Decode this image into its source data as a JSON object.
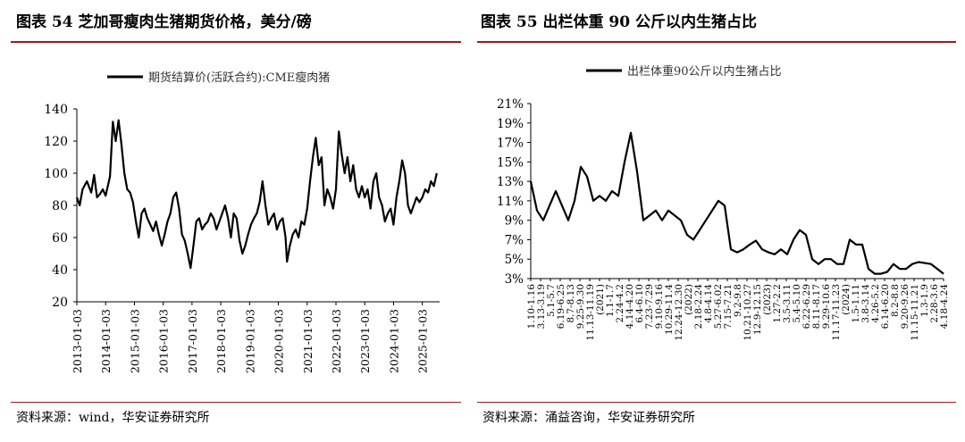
{
  "left": {
    "title": "图表 54 芝加哥瘦肉生猪期货价格，美分/磅",
    "source": "资料来源：wind，华安证券研究所"
  },
  "right": {
    "title": "图表 55 出栏体重 90 公斤以内生猪占比",
    "source": "资料来源：涌益咨询，华安证券研究所"
  },
  "chart_data": [
    {
      "type": "line",
      "legend": "期货结算价(活跃合约):CME瘦肉猪",
      "legend_position": "top",
      "ylim": [
        20,
        140
      ],
      "yticks": [
        20,
        40,
        60,
        80,
        100,
        120,
        140
      ],
      "xlim": [
        2013.0,
        2025.6
      ],
      "xticks": [
        {
          "value": 2013.0,
          "label": "2013-01-03"
        },
        {
          "value": 2014.0,
          "label": "2014-01-03"
        },
        {
          "value": 2015.0,
          "label": "2015-01-03"
        },
        {
          "value": 2016.0,
          "label": "2016-01-03"
        },
        {
          "value": 2017.0,
          "label": "2017-01-03"
        },
        {
          "value": 2018.0,
          "label": "2018-01-03"
        },
        {
          "value": 2019.0,
          "label": "2019-01-03"
        },
        {
          "value": 2020.0,
          "label": "2020-01-03"
        },
        {
          "value": 2021.0,
          "label": "2021-01-03"
        },
        {
          "value": 2022.0,
          "label": "2022-01-03"
        },
        {
          "value": 2023.0,
          "label": "2023-01-03"
        },
        {
          "value": 2024.0,
          "label": "2024-01-03"
        },
        {
          "value": 2025.0,
          "label": "2025-01-03"
        }
      ],
      "series": [
        {
          "name": "期货结算价(活跃合约):CME瘦肉猪",
          "x": [
            2013.0,
            2013.1,
            2013.2,
            2013.35,
            2013.5,
            2013.6,
            2013.7,
            2013.8,
            2013.9,
            2014.0,
            2014.15,
            2014.25,
            2014.35,
            2014.45,
            2014.55,
            2014.65,
            2014.75,
            2014.85,
            2014.95,
            2015.05,
            2015.15,
            2015.25,
            2015.35,
            2015.45,
            2015.55,
            2015.65,
            2015.75,
            2015.85,
            2015.95,
            2016.05,
            2016.15,
            2016.25,
            2016.35,
            2016.45,
            2016.55,
            2016.65,
            2016.75,
            2016.85,
            2016.95,
            2017.05,
            2017.15,
            2017.25,
            2017.35,
            2017.45,
            2017.55,
            2017.65,
            2017.75,
            2017.85,
            2017.95,
            2018.05,
            2018.15,
            2018.25,
            2018.35,
            2018.45,
            2018.55,
            2018.65,
            2018.75,
            2018.85,
            2018.95,
            2019.05,
            2019.15,
            2019.25,
            2019.35,
            2019.45,
            2019.55,
            2019.65,
            2019.75,
            2019.85,
            2019.95,
            2020.05,
            2020.15,
            2020.25,
            2020.3,
            2020.4,
            2020.5,
            2020.6,
            2020.7,
            2020.8,
            2020.9,
            2021.0,
            2021.1,
            2021.2,
            2021.3,
            2021.4,
            2021.5,
            2021.6,
            2021.7,
            2021.8,
            2021.9,
            2022.0,
            2022.1,
            2022.2,
            2022.3,
            2022.4,
            2022.5,
            2022.6,
            2022.7,
            2022.8,
            2022.9,
            2023.0,
            2023.1,
            2023.2,
            2023.3,
            2023.4,
            2023.5,
            2023.6,
            2023.7,
            2023.8,
            2023.9,
            2024.0,
            2024.1,
            2024.2,
            2024.3,
            2024.4,
            2024.5,
            2024.6,
            2024.7,
            2024.8,
            2024.9,
            2025.0,
            2025.1,
            2025.2,
            2025.3,
            2025.4,
            2025.5
          ],
          "values": [
            85,
            80,
            90,
            95,
            88,
            99,
            85,
            87,
            90,
            86,
            98,
            132,
            120,
            133,
            118,
            100,
            90,
            88,
            82,
            70,
            60,
            75,
            78,
            72,
            68,
            64,
            70,
            62,
            55,
            62,
            70,
            75,
            85,
            88,
            78,
            62,
            58,
            50,
            41,
            55,
            70,
            72,
            65,
            68,
            70,
            75,
            72,
            65,
            70,
            75,
            80,
            72,
            60,
            75,
            72,
            58,
            50,
            55,
            62,
            68,
            72,
            75,
            82,
            95,
            80,
            68,
            72,
            75,
            65,
            70,
            72,
            60,
            45,
            55,
            62,
            65,
            60,
            70,
            68,
            78,
            95,
            110,
            122,
            105,
            110,
            80,
            90,
            85,
            78,
            90,
            126,
            112,
            100,
            110,
            95,
            105,
            90,
            85,
            92,
            85,
            90,
            78,
            95,
            100,
            85,
            80,
            70,
            75,
            78,
            68,
            85,
            95,
            108,
            100,
            80,
            75,
            80,
            85,
            82,
            85,
            90,
            88,
            95,
            92,
            100
          ]
        }
      ]
    },
    {
      "type": "line",
      "legend": "出栏体重90公斤以内生猪占比",
      "legend_position": "top",
      "ylim": [
        3,
        21
      ],
      "yticks": [
        "3%",
        "5%",
        "7%",
        "9%",
        "11%",
        "13%",
        "15%",
        "17%",
        "19%",
        "21%"
      ],
      "xticks": [
        "1.10-1.16",
        "3.13-3.19",
        "5.1-5.7",
        "6.19-6.25",
        "8.7-8.13",
        "9.25-9.30",
        "11.13-11.19",
        "(2021)",
        "1.1-1.7",
        "2.24-4.2",
        "4.14-4.20",
        "6.4-6.10",
        "7.23-7.29",
        "9.10-9.16",
        "10.29-11.4",
        "12.24-12.30",
        "(2022)",
        "2.18-2.24",
        "4.8-4.14",
        "5.27-6.02",
        "7.15-7.21",
        "9.2-9.8",
        "10.21-10.27",
        "12.9-12.15",
        "(2023)",
        "1.27-2.2",
        "3.5-3.11",
        "5.4-5.10",
        "6.22-6.29",
        "8.11-8.17",
        "9.29-10.6",
        "11.17-11.23",
        "(2024)",
        "1.5-1.11",
        "3.8-3.14",
        "4.26-5.2",
        "6.14-6.20",
        "8.2-8.8",
        "9.20-9.26",
        "11.15-11.21",
        "1.3-1.9",
        "2.28-3.6",
        "4.18-4.24"
      ],
      "series": [
        {
          "name": "出栏体重90公斤以内生猪占比",
          "values": [
            13.0,
            10.0,
            9.0,
            10.5,
            12.0,
            10.5,
            9.0,
            11.0,
            14.5,
            13.5,
            11.0,
            11.5,
            11.0,
            12.0,
            11.5,
            15.0,
            18.0,
            14.0,
            9.0,
            9.5,
            10.0,
            9.0,
            10.0,
            9.5,
            9.0,
            7.5,
            7.0,
            8.0,
            9.0,
            10.0,
            11.0,
            10.5,
            6.0,
            5.7,
            6.0,
            6.5,
            6.9,
            6.0,
            5.7,
            5.5,
            6.0,
            5.5,
            7.0,
            8.0,
            7.5,
            5.0,
            4.5,
            5.0,
            5.0,
            4.5,
            4.5,
            7.0,
            6.5,
            6.5,
            4.0,
            3.5,
            3.5,
            3.7,
            4.5,
            4.0,
            4.0,
            4.5,
            4.7,
            4.6,
            4.5,
            4.0,
            3.5
          ]
        }
      ]
    }
  ]
}
